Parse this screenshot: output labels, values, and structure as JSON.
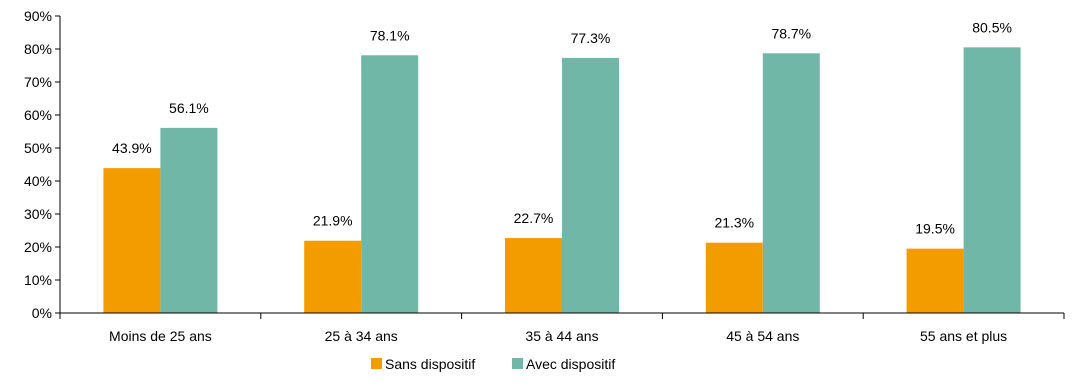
{
  "chart_data": {
    "type": "bar",
    "categories": [
      "Moins de 25 ans",
      "25 à 34 ans",
      "35 à 44 ans",
      "45 à 54 ans",
      "55 ans et plus"
    ],
    "series": [
      {
        "name": "Sans dispositif",
        "color": "#F39C00",
        "values": [
          43.9,
          21.9,
          22.7,
          21.3,
          19.5
        ],
        "labels": [
          "43.9%",
          "21.9%",
          "22.7%",
          "21.3%",
          "19.5%"
        ]
      },
      {
        "name": "Avec dispositif",
        "color": "#71B7A8",
        "values": [
          56.1,
          78.1,
          77.3,
          78.7,
          80.5
        ],
        "labels": [
          "56.1%",
          "78.1%",
          "77.3%",
          "78.7%",
          "80.5%"
        ]
      }
    ],
    "y_ticks": [
      0,
      10,
      20,
      30,
      40,
      50,
      60,
      70,
      80,
      90
    ],
    "y_tick_labels": [
      "0%",
      "10%",
      "20%",
      "30%",
      "40%",
      "50%",
      "60%",
      "70%",
      "80%",
      "90%"
    ],
    "ylim": [
      0,
      90
    ],
    "grid": false,
    "legend_position": "bottom"
  }
}
